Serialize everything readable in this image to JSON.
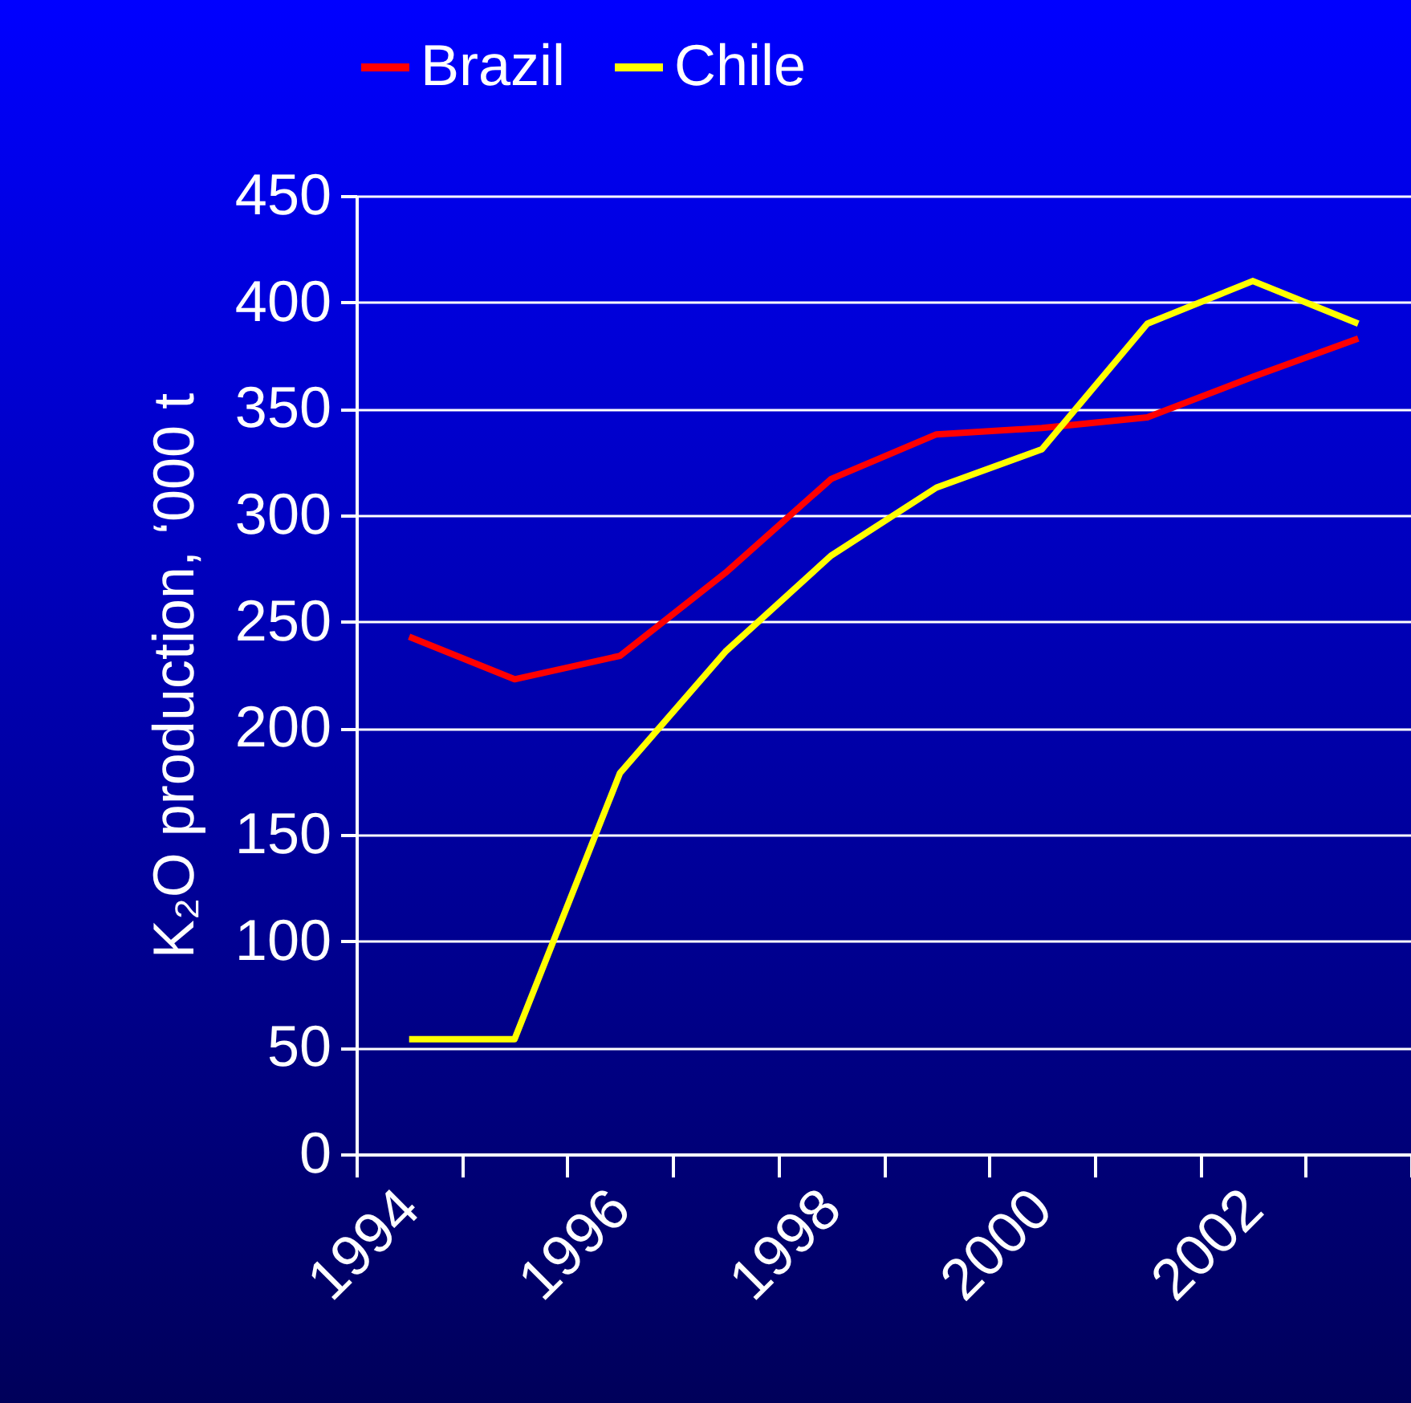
{
  "chart_data": {
    "type": "line",
    "ylabel": "K₂O production, ‘000 t",
    "categories": [
      "1994",
      null,
      "1996",
      null,
      "1998",
      null,
      "2000",
      null,
      "2002",
      null
    ],
    "series": [
      {
        "name": "Brazil",
        "color": "#ff0000",
        "values": [
          243,
          223,
          234,
          273,
          317,
          338,
          341,
          346,
          365,
          383
        ]
      },
      {
        "name": "Chile",
        "color": "#ffff00",
        "values": [
          54,
          54,
          179,
          236,
          281,
          313,
          331,
          390,
          410,
          390
        ]
      }
    ],
    "ylim": [
      0,
      450
    ],
    "yticks": [
      0,
      50,
      100,
      150,
      200,
      250,
      300,
      350,
      400,
      450
    ],
    "grid": "y",
    "legend": "top",
    "marker": "none",
    "line_style": "solid"
  }
}
